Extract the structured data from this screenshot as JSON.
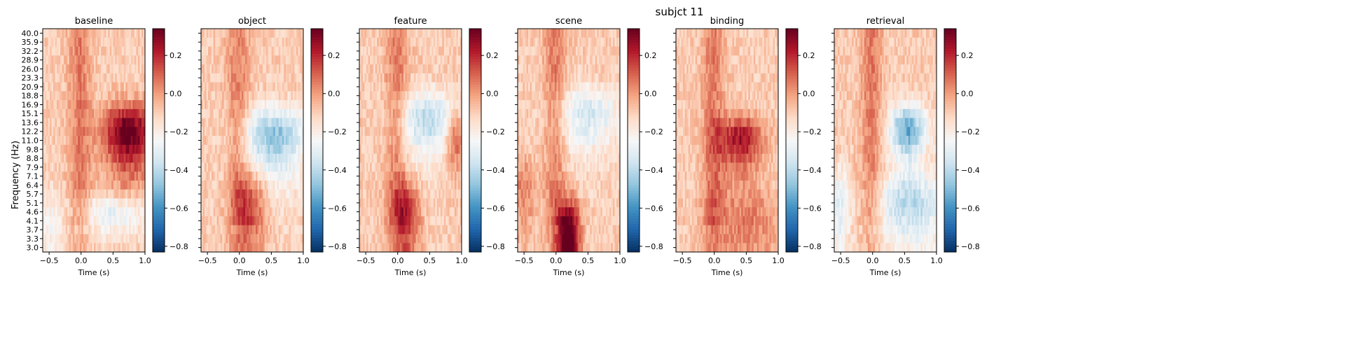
{
  "chart_data": {
    "type": "heatmap",
    "suptitle": "subjct 11",
    "ylabel": "Frequency (Hz)",
    "xlabel": "Time (s)",
    "xlim": [
      -0.6,
      1.0
    ],
    "x_ticks": [
      -0.5,
      0.0,
      0.5,
      1.0
    ],
    "x_tick_labels": [
      "−0.5",
      "0.0",
      "0.5",
      "1.0"
    ],
    "frequencies_hz": [
      "40.0",
      "35.9",
      "32.2",
      "28.9",
      "26.0",
      "23.3",
      "20.9",
      "18.8",
      "16.9",
      "15.1",
      "13.6",
      "12.2",
      "11.0",
      "9.8",
      "8.8",
      "7.9",
      "7.1",
      "6.4",
      "5.7",
      "5.1",
      "4.6",
      "4.1",
      "3.7",
      "3.3",
      "3.0"
    ],
    "colorbar": {
      "colormap": "RdBu_r",
      "vmin": -0.83,
      "vmax": 0.34,
      "ticks": [
        0.2,
        0.0,
        -0.2,
        -0.4,
        -0.6,
        -0.8
      ],
      "tick_labels": [
        "0.2",
        "0.0",
        "−0.2",
        "−0.4",
        "−0.6",
        "−0.8"
      ]
    },
    "panels": [
      {
        "title": "baseline"
      },
      {
        "title": "object"
      },
      {
        "title": "feature"
      },
      {
        "title": "scene"
      },
      {
        "title": "binding"
      },
      {
        "title": "retrieval"
      }
    ]
  }
}
